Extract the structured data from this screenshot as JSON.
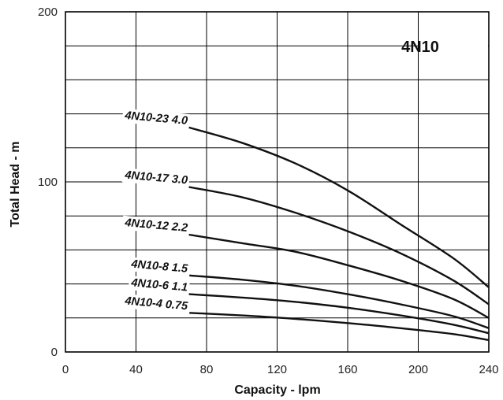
{
  "chart_data": {
    "type": "line",
    "title": "4N10",
    "xlabel": "Capacity - lpm",
    "ylabel": "Total Head - m",
    "xlim": [
      0,
      240
    ],
    "ylim": [
      0,
      200
    ],
    "x_ticks": [
      "0",
      "40",
      "80",
      "120",
      "160",
      "200",
      "240"
    ],
    "y_ticks": [
      "0",
      "100",
      "200"
    ],
    "grid": true,
    "series": [
      {
        "name": "4N10-23 4.0",
        "x": [
          70,
          100,
          130,
          160,
          190,
          220,
          240
        ],
        "y": [
          132,
          123,
          111,
          95,
          75,
          55,
          38
        ]
      },
      {
        "name": "4N10-17 3.0",
        "x": [
          70,
          100,
          130,
          160,
          190,
          220,
          240
        ],
        "y": [
          97,
          91,
          82,
          71,
          58,
          42,
          28
        ]
      },
      {
        "name": "4N10-12 2.2",
        "x": [
          70,
          100,
          130,
          160,
          190,
          220,
          240
        ],
        "y": [
          69,
          64,
          59,
          51,
          42,
          31,
          20
        ]
      },
      {
        "name": "4N10-8 1.5",
        "x": [
          70,
          100,
          130,
          160,
          190,
          220,
          240
        ],
        "y": [
          45,
          42.5,
          39,
          34,
          28,
          21,
          14
        ]
      },
      {
        "name": "4N10-6 1.1",
        "x": [
          70,
          100,
          130,
          160,
          190,
          220,
          240
        ],
        "y": [
          34,
          32,
          29.5,
          26,
          21.5,
          16,
          11
        ]
      },
      {
        "name": "4N10-4 0.75",
        "x": [
          70,
          100,
          130,
          160,
          190,
          220,
          240
        ],
        "y": [
          23,
          21.5,
          19.5,
          17,
          14,
          10.5,
          7
        ]
      }
    ]
  }
}
